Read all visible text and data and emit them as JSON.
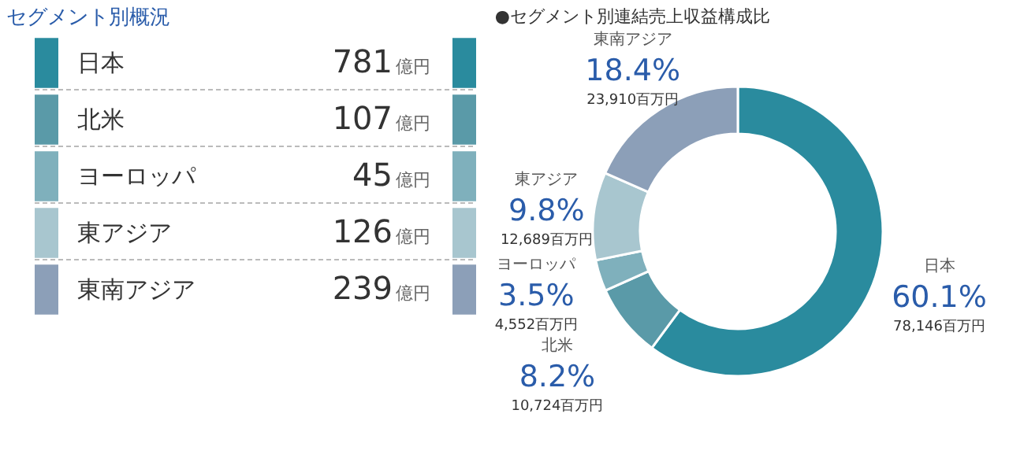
{
  "chart_data": [
    {
      "type": "other",
      "title": "セグメント別概況",
      "categories": [
        "日本",
        "北米",
        "ヨーロッパ",
        "東アジア",
        "東南アジア"
      ],
      "values": [
        781,
        107,
        45,
        126,
        239
      ],
      "colors": [
        "#2a8b9e",
        "#5a9aa8",
        "#7fb0bc",
        "#a8c6cf",
        "#8c9fb8"
      ],
      "annotations": [
        "億円"
      ],
      "data_labels": true
    },
    {
      "type": "donut",
      "title": "●セグメント別連結売上収益構成比",
      "categories": [
        "日本",
        "北米",
        "ヨーロッパ",
        "東アジア",
        "東南アジア"
      ],
      "values": [
        60.1,
        8.2,
        3.5,
        9.8,
        18.4
      ],
      "colors": [
        "#2a8b9e",
        "#5a9aa8",
        "#7fb0bc",
        "#a8c6cf",
        "#8c9fb8"
      ],
      "value_labels": [
        "60.1%",
        "8.2%",
        "3.5%",
        "9.8%",
        "18.4%"
      ],
      "annotations": [
        "78,146百万円",
        "10,724百万円",
        "4,552百万円",
        "12,689百万円",
        "23,910百万円"
      ]
    }
  ]
}
